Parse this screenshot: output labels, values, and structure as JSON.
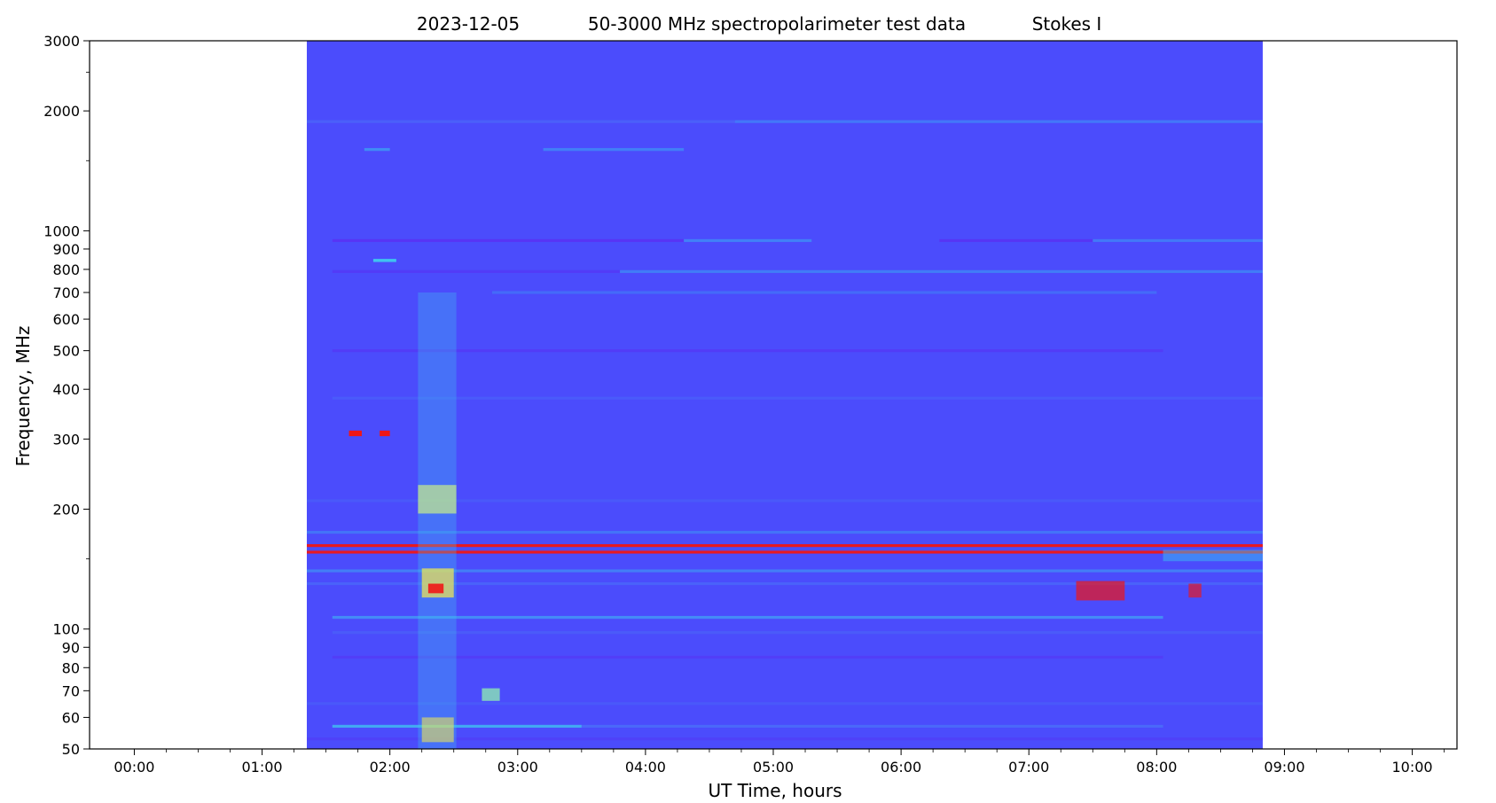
{
  "chart_data": {
    "type": "heatmap",
    "title_parts": [
      "2023-12-05",
      "50-3000 MHz spectropolarimeter test data",
      "Stokes I"
    ],
    "xlabel": "UT Time, hours",
    "ylabel": "Frequency, MHz",
    "x_scale": "linear",
    "x_unit": "hours",
    "xlim": [
      -0.35,
      10.35
    ],
    "y_scale": "log",
    "ylim": [
      50,
      3000
    ],
    "grid": false,
    "legend": "none",
    "x_ticks": [
      {
        "value": 0,
        "label": "00:00"
      },
      {
        "value": 1,
        "label": "01:00"
      },
      {
        "value": 2,
        "label": "02:00"
      },
      {
        "value": 3,
        "label": "03:00"
      },
      {
        "value": 4,
        "label": "04:00"
      },
      {
        "value": 5,
        "label": "05:00"
      },
      {
        "value": 6,
        "label": "06:00"
      },
      {
        "value": 7,
        "label": "07:00"
      },
      {
        "value": 8,
        "label": "08:00"
      },
      {
        "value": 9,
        "label": "09:00"
      },
      {
        "value": 10,
        "label": "10:00"
      }
    ],
    "y_ticks": [
      {
        "value": 50,
        "label": "50"
      },
      {
        "value": 60,
        "label": "60"
      },
      {
        "value": 70,
        "label": "70"
      },
      {
        "value": 80,
        "label": "80"
      },
      {
        "value": 90,
        "label": "90"
      },
      {
        "value": 100,
        "label": "100"
      },
      {
        "value": 200,
        "label": "200"
      },
      {
        "value": 300,
        "label": "300"
      },
      {
        "value": 400,
        "label": "400"
      },
      {
        "value": 500,
        "label": "500"
      },
      {
        "value": 600,
        "label": "600"
      },
      {
        "value": 700,
        "label": "700"
      },
      {
        "value": 800,
        "label": "800"
      },
      {
        "value": 900,
        "label": "900"
      },
      {
        "value": 1000,
        "label": "1000"
      },
      {
        "value": 2000,
        "label": "2000"
      },
      {
        "value": 3000,
        "label": "3000"
      }
    ],
    "y_minor_ticks": [
      150,
      1500,
      2500
    ],
    "data_extent": {
      "x": [
        1.35,
        8.83
      ],
      "y": [
        50,
        3000
      ]
    },
    "colormap": "rainbow",
    "background_color": "#4b4cfc",
    "bands": [
      {
        "y": 1880,
        "x": [
          4.7,
          8.83
        ],
        "color": "#3e9af5",
        "opacity": 0.55
      },
      {
        "y": 1880,
        "x": [
          1.35,
          4.7
        ],
        "color": "#4a7cf7",
        "opacity": 0.4
      },
      {
        "y": 1600,
        "x": [
          1.8,
          2.0
        ],
        "color": "#3aaaf2",
        "opacity": 0.7
      },
      {
        "y": 1600,
        "x": [
          3.2,
          4.3
        ],
        "color": "#3aaaf2",
        "opacity": 0.55
      },
      {
        "y": 945,
        "x": [
          1.55,
          4.3
        ],
        "color": "#5a2ff2",
        "opacity": 0.8
      },
      {
        "y": 945,
        "x": [
          4.3,
          5.3
        ],
        "color": "#3aa3f3",
        "opacity": 0.6
      },
      {
        "y": 945,
        "x": [
          6.3,
          7.5
        ],
        "color": "#5a2ff2",
        "opacity": 0.75
      },
      {
        "y": 945,
        "x": [
          7.5,
          8.83
        ],
        "color": "#3aa3f3",
        "opacity": 0.5
      },
      {
        "y": 790,
        "x": [
          1.55,
          3.8
        ],
        "color": "#5a2ff2",
        "opacity": 0.55
      },
      {
        "y": 790,
        "x": [
          3.8,
          8.83
        ],
        "color": "#3aa3f3",
        "opacity": 0.55
      },
      {
        "y": 700,
        "x": [
          2.8,
          8.0
        ],
        "color": "#3aa3f3",
        "opacity": 0.35
      },
      {
        "y": 500,
        "x": [
          1.55,
          8.05
        ],
        "color": "#5a2ff2",
        "opacity": 0.55
      },
      {
        "y": 380,
        "x": [
          1.55,
          8.83
        ],
        "color": "#4a7cf7",
        "opacity": 0.3
      },
      {
        "y": 210,
        "x": [
          1.35,
          8.83
        ],
        "color": "#4a72f6",
        "opacity": 0.35
      },
      {
        "y": 175,
        "x": [
          1.35,
          8.83
        ],
        "color": "#3aa3f3",
        "opacity": 0.45
      },
      {
        "y": 162,
        "x": [
          1.35,
          8.83
        ],
        "color": "#ef1616",
        "opacity": 0.95
      },
      {
        "y": 156,
        "x": [
          1.35,
          8.83
        ],
        "color": "#ef1616",
        "opacity": 0.95
      },
      {
        "y": 140,
        "x": [
          1.35,
          8.83
        ],
        "color": "#39bdf0",
        "opacity": 0.45
      },
      {
        "y": 130,
        "x": [
          1.35,
          8.83
        ],
        "color": "#4a8bf6",
        "opacity": 0.35
      },
      {
        "y": 107,
        "x": [
          1.55,
          8.05
        ],
        "color": "#3fb5f1",
        "opacity": 0.6
      },
      {
        "y": 98,
        "x": [
          1.55,
          8.83
        ],
        "color": "#4a72f6",
        "opacity": 0.4
      },
      {
        "y": 85,
        "x": [
          1.55,
          8.05
        ],
        "color": "#5a2ff2",
        "opacity": 0.45
      },
      {
        "y": 65,
        "x": [
          1.35,
          8.83
        ],
        "color": "#4a72f6",
        "opacity": 0.35
      },
      {
        "y": 57,
        "x": [
          1.55,
          3.5
        ],
        "color": "#3ed0ee",
        "opacity": 0.7
      },
      {
        "y": 57,
        "x": [
          3.5,
          8.05
        ],
        "color": "#4a8bf6",
        "opacity": 0.45
      },
      {
        "y": 53,
        "x": [
          1.35,
          8.83
        ],
        "color": "#5a2ff2",
        "opacity": 0.35
      }
    ],
    "bursts": [
      {
        "x": [
          2.22,
          2.52
        ],
        "y": [
          50,
          700
        ],
        "color": "#3fc7ef",
        "opacity": 0.3
      },
      {
        "x": [
          2.22,
          2.52
        ],
        "y": [
          195,
          230
        ],
        "color": "#c8f08a",
        "opacity": 0.7
      },
      {
        "x": [
          2.25,
          2.5
        ],
        "y": [
          120,
          142
        ],
        "color": "#e8e35a",
        "opacity": 0.75
      },
      {
        "x": [
          2.3,
          2.42
        ],
        "y": [
          123,
          130
        ],
        "color": "#ef1616",
        "opacity": 0.9
      },
      {
        "x": [
          2.25,
          2.5
        ],
        "y": [
          52,
          60
        ],
        "color": "#e8e35a",
        "opacity": 0.6
      },
      {
        "x": [
          1.68,
          1.78
        ],
        "y": [
          305,
          315
        ],
        "color": "#ef1616",
        "opacity": 1
      },
      {
        "x": [
          1.92,
          2.0
        ],
        "y": [
          305,
          315
        ],
        "color": "#ef1616",
        "opacity": 1
      },
      {
        "x": [
          1.87,
          2.05
        ],
        "y": [
          835,
          850
        ],
        "color": "#3ed0ee",
        "opacity": 0.9
      },
      {
        "x": [
          2.72,
          2.86
        ],
        "y": [
          66,
          71
        ],
        "color": "#8ff0b0",
        "opacity": 0.75
      },
      {
        "x": [
          7.37,
          7.75
        ],
        "y": [
          118,
          132
        ],
        "color": "#ef1616",
        "opacity": 0.7
      },
      {
        "x": [
          8.25,
          8.35
        ],
        "y": [
          120,
          130
        ],
        "color": "#ef1616",
        "opacity": 0.65
      },
      {
        "x": [
          8.05,
          8.83
        ],
        "y": [
          148,
          158
        ],
        "color": "#39bdf0",
        "opacity": 0.5
      }
    ]
  }
}
